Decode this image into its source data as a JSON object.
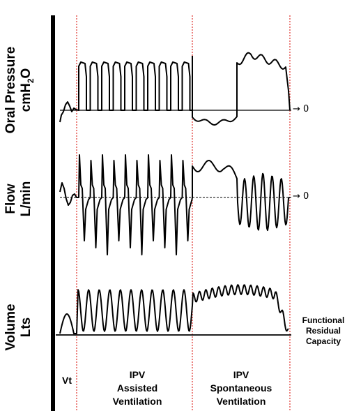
{
  "panels": {
    "oral_pressure": {
      "label_line1": "Oral Pressure",
      "label_line2_base": "cmH",
      "label_line2_sub": "2",
      "label_line2_end": "O"
    },
    "flow": {
      "label_line1": "Flow",
      "label_line2": "L/min"
    },
    "volume": {
      "label_line1": "Volume",
      "label_line2": "Lts"
    }
  },
  "zero_markers": {
    "pressure": "→ 0",
    "flow": "→ 0"
  },
  "frc_label": {
    "line1": "Functional",
    "line2": "Residual",
    "line3": "Capacity"
  },
  "phases": {
    "vt": {
      "line1": "Vt"
    },
    "ipv_assisted": {
      "line1": "IPV",
      "line2": "Assisted",
      "line3": "Ventilation"
    },
    "ipv_spontaneous": {
      "line1": "IPV",
      "line2": "Spontaneous",
      "line3": "Ventilation"
    }
  },
  "colors": {
    "trace": "#000000",
    "phase_divider": "#e0312b",
    "axis": "#000000"
  }
}
